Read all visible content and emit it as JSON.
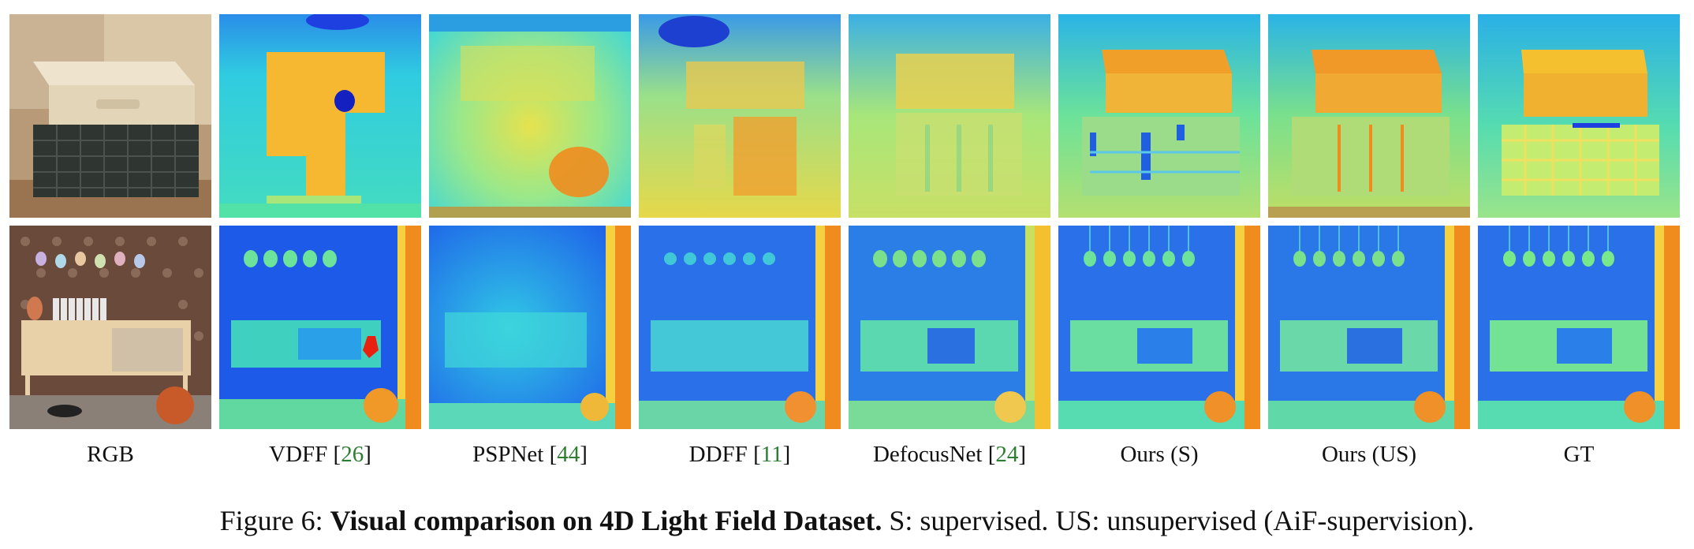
{
  "columns": [
    {
      "id": "rgb",
      "label": "RGB",
      "ref": ""
    },
    {
      "id": "vdff",
      "label": "VDFF",
      "ref": "26"
    },
    {
      "id": "pspnet",
      "label": "PSPNet",
      "ref": "44"
    },
    {
      "id": "ddff",
      "label": "DDFF",
      "ref": "11"
    },
    {
      "id": "defocusnet",
      "label": "DefocusNet",
      "ref": "24"
    },
    {
      "id": "ours-s",
      "label": "Ours (S)",
      "ref": ""
    },
    {
      "id": "ours-us",
      "label": "Ours (US)",
      "ref": ""
    },
    {
      "id": "gt",
      "label": "GT",
      "ref": ""
    }
  ],
  "caption": {
    "prefix": "Figure 6:",
    "bold": "Visual comparison on 4D Light Field Dataset.",
    "rest": "S: supervised. US:  unsupervised (AiF-supervision)."
  },
  "colors": {
    "depth_far": "#1e40e0",
    "depth_mid": "#27d6d0",
    "depth_green": "#78e88a",
    "depth_near": "#f5c030",
    "depth_nearest": "#f08c1e",
    "reference_link": "#2e7d32"
  }
}
